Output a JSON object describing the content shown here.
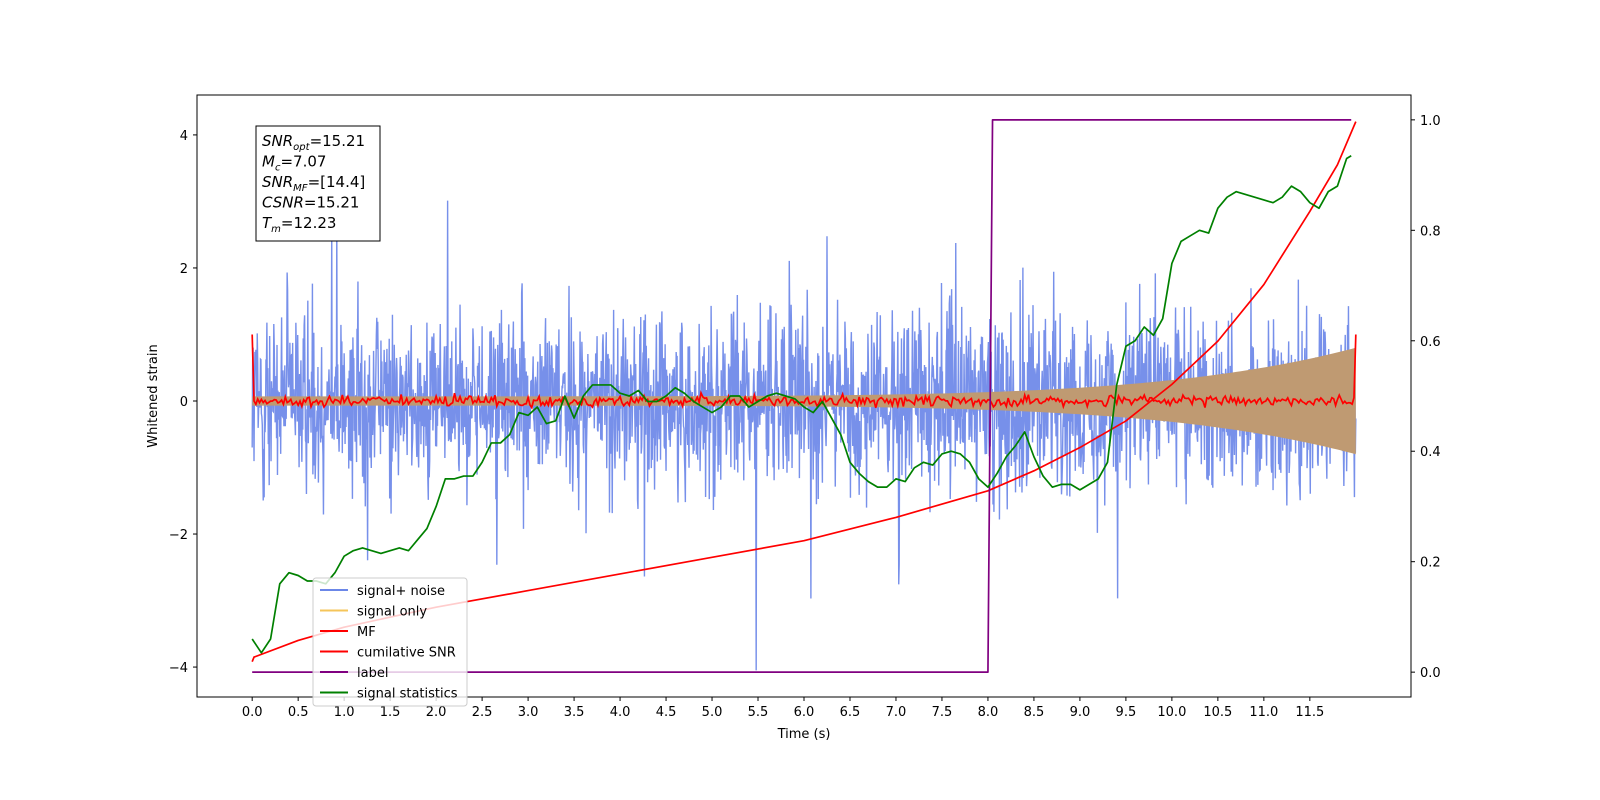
{
  "chart_data": {
    "type": "line",
    "xlabel": "Time (s)",
    "ylabel": "Whitened strain",
    "xlim": [
      -0.6,
      12.6
    ],
    "ylim": [
      -4.45,
      4.6
    ],
    "y2lim": [
      -0.045,
      1.045
    ],
    "xticks": [
      0.0,
      0.5,
      1.0,
      1.5,
      2.0,
      2.5,
      3.0,
      3.5,
      4.0,
      4.5,
      5.0,
      5.5,
      6.0,
      6.5,
      7.0,
      7.5,
      8.0,
      8.5,
      9.0,
      9.5,
      10.0,
      10.5,
      11.0,
      11.5
    ],
    "xtick_labels": [
      "0.0",
      "0.5",
      "1.0",
      "1.5",
      "2.0",
      "2.5",
      "3.0",
      "3.5",
      "4.0",
      "4.5",
      "5.0",
      "5.5",
      "6.0",
      "6.5",
      "7.0",
      "7.5",
      "8.0",
      "8.5",
      "9.0",
      "9.5",
      "10.0",
      "10.5",
      "11.0",
      "11.5"
    ],
    "yticks": [
      -4,
      -2,
      0,
      2,
      4
    ],
    "ytick_labels": [
      "−4",
      "−2",
      "0",
      "2",
      "4"
    ],
    "y2ticks": [
      0.0,
      0.2,
      0.4,
      0.6,
      0.8,
      1.0
    ],
    "y2tick_labels": [
      "0.0",
      "0.2",
      "0.4",
      "0.6",
      "0.8",
      "1.0"
    ],
    "grid": false,
    "legend_position": "lower-left",
    "annotation": {
      "position": "top-left",
      "lines": [
        {
          "sym": "SNR",
          "sub": "opt",
          "val": "=15.21"
        },
        {
          "sym": "M",
          "sub": "c",
          "val": "=7.07"
        },
        {
          "sym": "SNR",
          "sub": "MF",
          "val": "=[14.4]"
        },
        {
          "sym": "CSNR",
          "sub": "",
          "val": "=15.21"
        },
        {
          "sym": "T",
          "sub": "m",
          "val": "=12.23"
        }
      ]
    },
    "series": [
      {
        "name": "signal+ noise",
        "axis": "left",
        "color": "#6b87e8",
        "kind": "noise",
        "sigma": 1.1,
        "t_range": [
          0,
          12
        ]
      },
      {
        "name": "signal only",
        "axis": "left",
        "color": "#f5c55a",
        "kind": "chirp_envelope",
        "env_start": 0.07,
        "env_end": 0.8,
        "t_range": [
          0,
          12
        ]
      },
      {
        "name": "MF",
        "axis": "left",
        "color": "#ff0000",
        "kind": "mf",
        "start": 1.0,
        "end": 1.0,
        "noise_amp": 0.07,
        "t_range": [
          0,
          12
        ]
      },
      {
        "name": "cumilative SNR",
        "axis": "left",
        "color": "#ff0000",
        "x": [
          0.0,
          0.02,
          0.5,
          1.0,
          2.0,
          3.0,
          4.0,
          5.0,
          6.0,
          7.0,
          8.0,
          8.5,
          9.0,
          9.5,
          10.0,
          10.5,
          11.0,
          11.5,
          11.8,
          12.0
        ],
        "y": [
          -3.92,
          -3.85,
          -3.6,
          -3.4,
          -3.1,
          -2.85,
          -2.6,
          -2.35,
          -2.1,
          -1.75,
          -1.35,
          -1.05,
          -0.7,
          -0.3,
          0.25,
          0.9,
          1.75,
          2.85,
          3.55,
          4.2
        ]
      },
      {
        "name": "label",
        "axis": "right",
        "color": "#800080",
        "x": [
          0.0,
          8.0,
          8.05,
          11.95
        ],
        "y": [
          0.0,
          0.0,
          1.0,
          1.0
        ]
      },
      {
        "name": "signal statistics",
        "axis": "right",
        "color": "#008000",
        "x": [
          0.0,
          0.1,
          0.2,
          0.3,
          0.4,
          0.5,
          0.6,
          0.7,
          0.8,
          0.9,
          1.0,
          1.1,
          1.2,
          1.3,
          1.4,
          1.5,
          1.6,
          1.7,
          1.8,
          1.9,
          2.0,
          2.1,
          2.2,
          2.3,
          2.4,
          2.5,
          2.6,
          2.7,
          2.8,
          2.9,
          3.0,
          3.1,
          3.2,
          3.3,
          3.4,
          3.5,
          3.6,
          3.7,
          3.8,
          3.9,
          4.0,
          4.1,
          4.2,
          4.3,
          4.4,
          4.5,
          4.6,
          4.7,
          4.8,
          4.9,
          5.0,
          5.1,
          5.2,
          5.3,
          5.4,
          5.5,
          5.6,
          5.7,
          5.8,
          5.9,
          6.0,
          6.1,
          6.2,
          6.3,
          6.4,
          6.5,
          6.6,
          6.7,
          6.8,
          6.9,
          7.0,
          7.1,
          7.2,
          7.3,
          7.4,
          7.5,
          7.6,
          7.7,
          7.8,
          7.9,
          8.0,
          8.1,
          8.2,
          8.3,
          8.4,
          8.5,
          8.6,
          8.7,
          8.8,
          8.9,
          9.0,
          9.1,
          9.2,
          9.3,
          9.4,
          9.5,
          9.6,
          9.7,
          9.8,
          9.9,
          10.0,
          10.1,
          10.2,
          10.3,
          10.4,
          10.5,
          10.6,
          10.7,
          10.8,
          10.9,
          11.0,
          11.1,
          11.2,
          11.3,
          11.4,
          11.5,
          11.6,
          11.7,
          11.8,
          11.9,
          11.95
        ],
        "y": [
          0.06,
          0.035,
          0.06,
          0.16,
          0.18,
          0.175,
          0.165,
          0.165,
          0.16,
          0.18,
          0.21,
          0.22,
          0.225,
          0.22,
          0.215,
          0.22,
          0.225,
          0.22,
          0.24,
          0.26,
          0.3,
          0.35,
          0.35,
          0.355,
          0.355,
          0.38,
          0.415,
          0.415,
          0.43,
          0.47,
          0.465,
          0.48,
          0.45,
          0.455,
          0.5,
          0.46,
          0.5,
          0.52,
          0.52,
          0.52,
          0.505,
          0.5,
          0.51,
          0.49,
          0.49,
          0.5,
          0.515,
          0.505,
          0.49,
          0.48,
          0.47,
          0.48,
          0.5,
          0.5,
          0.48,
          0.49,
          0.5,
          0.505,
          0.5,
          0.495,
          0.48,
          0.47,
          0.49,
          0.46,
          0.43,
          0.38,
          0.36,
          0.345,
          0.335,
          0.335,
          0.35,
          0.345,
          0.37,
          0.38,
          0.375,
          0.395,
          0.4,
          0.395,
          0.38,
          0.35,
          0.335,
          0.36,
          0.39,
          0.41,
          0.435,
          0.39,
          0.355,
          0.335,
          0.34,
          0.34,
          0.33,
          0.34,
          0.35,
          0.38,
          0.52,
          0.59,
          0.6,
          0.625,
          0.61,
          0.64,
          0.74,
          0.78,
          0.79,
          0.8,
          0.795,
          0.84,
          0.86,
          0.87,
          0.865,
          0.86,
          0.855,
          0.85,
          0.86,
          0.88,
          0.87,
          0.85,
          0.84,
          0.87,
          0.88,
          0.93,
          0.935
        ]
      }
    ]
  }
}
